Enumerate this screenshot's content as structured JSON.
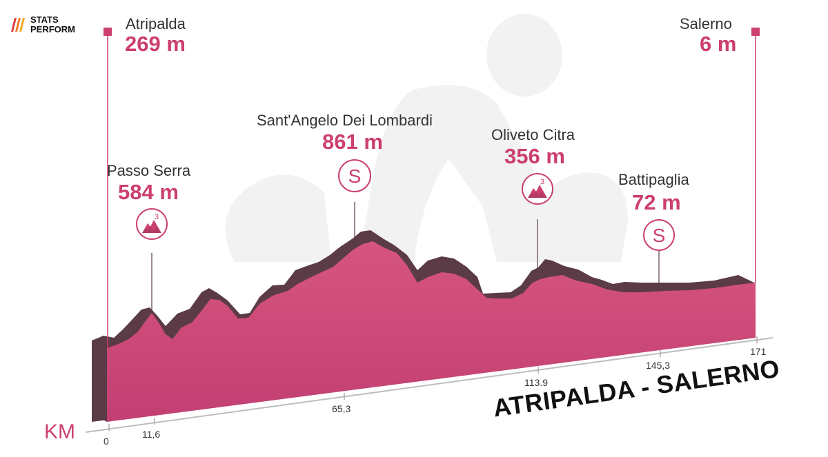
{
  "brand": {
    "line1": "STATS",
    "line2": "PERFORM"
  },
  "stage_title": "ATRIPALDA - SALERNO",
  "axis_unit": "KM",
  "start": {
    "name": "Atripalda",
    "altitude": "269 m"
  },
  "finish": {
    "name": "Salerno",
    "altitude": "6 m"
  },
  "points": [
    {
      "name": "Passo Serra",
      "altitude": "584 m",
      "icon": "gpm-cat-3-icon"
    },
    {
      "name": "Sant'Angelo Dei Lombardi",
      "altitude": "861 m",
      "icon": "sprint-icon"
    },
    {
      "name": "Oliveto Citra",
      "altitude": "356 m",
      "icon": "gpm-cat-3-icon"
    },
    {
      "name": "Battipaglia",
      "altitude": "72 m",
      "icon": "sprint-icon"
    }
  ],
  "km_ticks": [
    "0",
    "11,6",
    "65,3",
    "113.9",
    "145,3",
    "171"
  ],
  "badge": {
    "cat": "3",
    "sprint": "S"
  },
  "colors": {
    "accent": "#cc3f6f",
    "profile": "#d04f7f",
    "shadow": "#5b3b45",
    "text": "#333333"
  }
}
